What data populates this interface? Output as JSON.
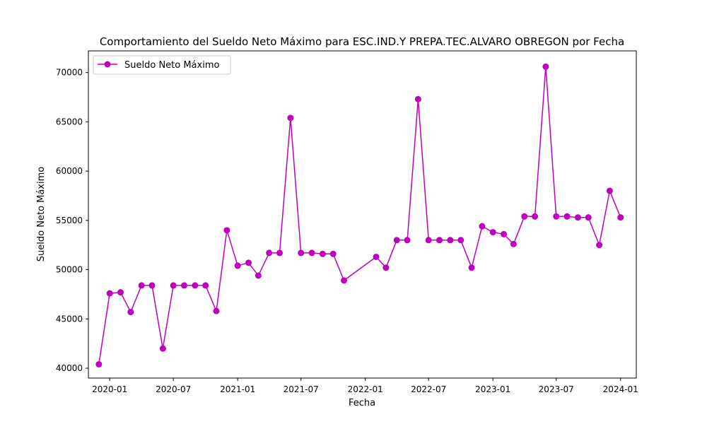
{
  "chart_data": {
    "type": "line",
    "title": "Comportamiento del Sueldo Neto Máximo para ESC.IND.Y PREPA.TEC.ALVARO OBREGON por Fecha",
    "xlabel": "Fecha",
    "ylabel": "Sueldo Neto Máximo",
    "grid": false,
    "legend": "top-left",
    "color": "#bf00bf",
    "xlim": [
      "2019-11-01",
      "2024-02-15"
    ],
    "ylim": [
      39000,
      72200
    ],
    "x_ticks": [
      "2020-01",
      "2020-07",
      "2021-01",
      "2021-07",
      "2022-01",
      "2022-07",
      "2023-01",
      "2023-07",
      "2024-01"
    ],
    "y_ticks": [
      40000,
      45000,
      50000,
      55000,
      60000,
      65000,
      70000
    ],
    "series": [
      {
        "name": "Sueldo Neto Máximo",
        "x": [
          "2019-12-01",
          "2020-01-01",
          "2020-02-01",
          "2020-03-01",
          "2020-04-01",
          "2020-05-01",
          "2020-06-01",
          "2020-07-01",
          "2020-08-01",
          "2020-09-01",
          "2020-10-01",
          "2020-11-01",
          "2020-12-01",
          "2021-01-01",
          "2021-02-01",
          "2021-03-01",
          "2021-04-01",
          "2021-05-01",
          "2021-06-01",
          "2021-07-01",
          "2021-08-01",
          "2021-09-01",
          "2021-10-01",
          "2021-11-01",
          "2022-02-01",
          "2022-03-01",
          "2022-04-01",
          "2022-05-01",
          "2022-06-01",
          "2022-07-01",
          "2022-08-01",
          "2022-09-01",
          "2022-10-01",
          "2022-11-01",
          "2022-12-01",
          "2023-01-01",
          "2023-02-01",
          "2023-03-01",
          "2023-04-01",
          "2023-05-01",
          "2023-06-01",
          "2023-07-01",
          "2023-08-01",
          "2023-09-01",
          "2023-10-01",
          "2023-11-01",
          "2023-12-01",
          "2024-01-01"
        ],
        "y": [
          40400,
          47600,
          47700,
          45700,
          48400,
          48400,
          42000,
          48400,
          48400,
          48400,
          48400,
          45800,
          54000,
          50400,
          50700,
          49400,
          51700,
          51700,
          65400,
          51700,
          51700,
          51600,
          51600,
          48900,
          51300,
          50200,
          53000,
          53000,
          67300,
          53000,
          53000,
          53000,
          53000,
          50200,
          54400,
          53800,
          53600,
          52600,
          55400,
          55400,
          70600,
          55400,
          55400,
          55300,
          55300,
          52500,
          58000,
          55300
        ]
      }
    ]
  }
}
